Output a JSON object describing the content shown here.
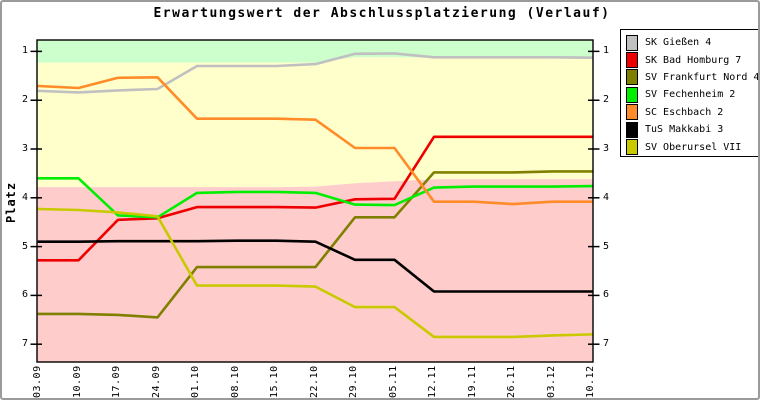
{
  "chart_data": {
    "type": "line",
    "title": "Erwartungswert der Abschlussplatzierung (Verlauf)",
    "ylabel": "Platz",
    "x_labels": [
      "03.09",
      "10.09",
      "17.09",
      "24.09",
      "01.10",
      "08.10",
      "15.10",
      "22.10",
      "29.10",
      "05.11",
      "12.11",
      "19.11",
      "26.11",
      "03.12",
      "10.12"
    ],
    "y_ticks": [
      1,
      2,
      3,
      4,
      5,
      6,
      7
    ],
    "y_axis_inverted": true,
    "ylim": [
      0.76,
      7.42
    ],
    "grid": false,
    "legend_position": "outside-top-right",
    "series": [
      {
        "name": "SK Gießen 4",
        "color": "#c0c0c0",
        "values": [
          1.81,
          1.84,
          1.8,
          1.77,
          1.3,
          1.3,
          1.3,
          1.26,
          1.05,
          1.04,
          1.12,
          1.12,
          1.12,
          1.12,
          1.13
        ]
      },
      {
        "name": "SK Bad Homburg 7",
        "color": "#ee0000",
        "values": [
          5.28,
          5.28,
          4.45,
          4.42,
          4.19,
          4.19,
          4.19,
          4.2,
          4.03,
          4.02,
          2.75,
          2.75,
          2.75,
          2.75,
          2.75
        ]
      },
      {
        "name": "SV Frankfurt Nord 4",
        "color": "#808000",
        "values": [
          6.38,
          6.38,
          6.4,
          6.45,
          5.42,
          5.42,
          5.42,
          5.42,
          4.4,
          4.4,
          3.48,
          3.48,
          3.48,
          3.46,
          3.46
        ]
      },
      {
        "name": "SV Fechenheim 2",
        "color": "#00ee00",
        "values": [
          3.6,
          3.6,
          4.36,
          4.4,
          3.9,
          3.88,
          3.88,
          3.9,
          4.14,
          4.15,
          3.79,
          3.77,
          3.77,
          3.77,
          3.76
        ]
      },
      {
        "name": "SC Eschbach 2",
        "color": "#ff8c28",
        "values": [
          1.71,
          1.75,
          1.54,
          1.53,
          2.38,
          2.38,
          2.38,
          2.4,
          2.98,
          2.98,
          4.08,
          4.08,
          4.13,
          4.08,
          4.08
        ]
      },
      {
        "name": "TuS Makkabi 3",
        "color": "#000000",
        "values": [
          4.9,
          4.9,
          4.89,
          4.89,
          4.89,
          4.88,
          4.88,
          4.9,
          5.27,
          5.27,
          5.92,
          5.92,
          5.92,
          5.92,
          5.92
        ]
      },
      {
        "name": "SV Oberursel VII",
        "color": "#c9c900",
        "values": [
          4.23,
          4.25,
          4.3,
          4.38,
          5.8,
          5.8,
          5.8,
          5.82,
          6.24,
          6.24,
          6.85,
          6.85,
          6.85,
          6.82,
          6.8
        ]
      }
    ],
    "background_zones": {
      "zone_colors": {
        "top": "#ccffcc",
        "middle": "#ffffcc",
        "bottom": "#ffcccc"
      },
      "boundary_top_middle": [
        1.23,
        1.23,
        1.23,
        1.23,
        1.23,
        1.23,
        1.23,
        1.23,
        1.12,
        1.12,
        1.13,
        1.13,
        1.13,
        1.13,
        1.13
      ],
      "boundary_middle_bottom": [
        3.78,
        3.78,
        3.78,
        3.78,
        3.78,
        3.78,
        3.78,
        3.77,
        3.7,
        3.66,
        3.62,
        3.62,
        3.62,
        3.62,
        3.62
      ]
    }
  }
}
